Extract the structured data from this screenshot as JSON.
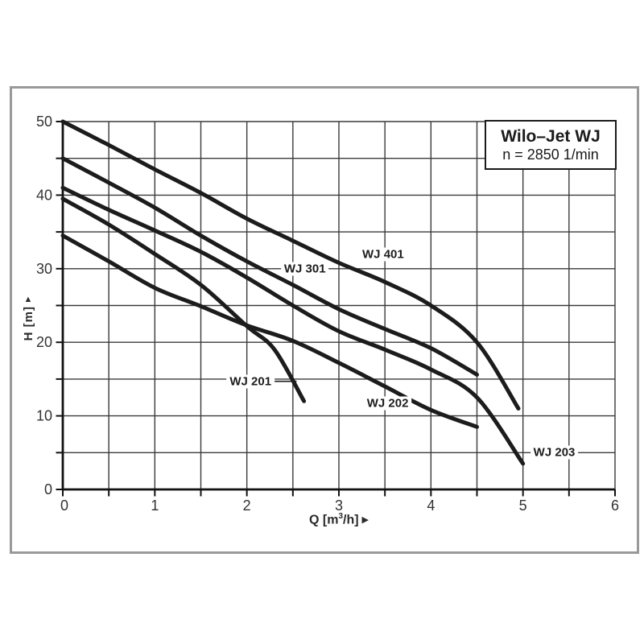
{
  "title_box": {
    "line1": "Wilo–Jet WJ",
    "line2": "n = 2850 1/min"
  },
  "axis_titles": {
    "x_pre": "Q [m",
    "x_sup": "3",
    "x_post": "/h]",
    "x_arrow": "▶",
    "y_label": "H [m]",
    "y_arrow": "▲"
  },
  "colors": {
    "curve": "#1c1c1c",
    "grid": "#3a3a3a",
    "axis": "#111111",
    "frame": "#999999",
    "text": "#333333"
  },
  "chart_data": {
    "type": "line",
    "title": "Wilo–Jet WJ",
    "subtitle": "n = 2850 1/min",
    "xlabel": "Q [m³/h]",
    "ylabel": "H [m]",
    "xlim": [
      0,
      6
    ],
    "ylim": [
      0,
      50
    ],
    "grid": {
      "x_step": 0.5,
      "y_step": 5,
      "on": true
    },
    "x_ticks": [
      0,
      1,
      2,
      3,
      4,
      5,
      6
    ],
    "y_ticks": [
      0,
      10,
      20,
      30,
      40,
      50
    ],
    "legend_position": "labels-on-curves",
    "series": [
      {
        "name": "WJ 401",
        "points": [
          [
            0,
            50
          ],
          [
            0.5,
            46.8
          ],
          [
            1,
            43.5
          ],
          [
            1.5,
            40.3
          ],
          [
            2,
            36.8
          ],
          [
            2.5,
            33.8
          ],
          [
            3,
            30.8
          ],
          [
            3.5,
            28.2
          ],
          [
            4,
            25
          ],
          [
            4.5,
            20
          ],
          [
            4.95,
            11
          ]
        ],
        "label_pos": [
          3.48,
          31.9
        ]
      },
      {
        "name": "WJ 301",
        "points": [
          [
            0,
            45
          ],
          [
            0.5,
            41.7
          ],
          [
            1,
            38.3
          ],
          [
            1.5,
            34.5
          ],
          [
            2,
            31
          ],
          [
            2.5,
            27.8
          ],
          [
            3,
            24.5
          ],
          [
            3.5,
            21.8
          ],
          [
            4,
            19.2
          ],
          [
            4.5,
            15.6
          ]
        ],
        "label_pos": [
          2.63,
          30.0
        ]
      },
      {
        "name": "WJ 203",
        "points": [
          [
            0,
            41
          ],
          [
            0.5,
            38
          ],
          [
            1,
            35.2
          ],
          [
            1.5,
            32.3
          ],
          [
            2,
            28.8
          ],
          [
            2.5,
            25
          ],
          [
            3,
            21.5
          ],
          [
            3.5,
            19
          ],
          [
            4,
            16.3
          ],
          [
            4.5,
            12.5
          ],
          [
            5,
            3.5
          ]
        ],
        "label_pos": [
          5.34,
          5.0
        ]
      },
      {
        "name": "WJ 201",
        "points": [
          [
            0,
            39.5
          ],
          [
            0.5,
            36
          ],
          [
            1,
            32
          ],
          [
            1.5,
            27.8
          ],
          [
            2,
            22.2
          ],
          [
            2.3,
            19
          ],
          [
            2.62,
            12
          ]
        ],
        "label_pos": [
          2.04,
          14.7
        ],
        "leader": [
          [
            2.3,
            14.7
          ],
          [
            2.54,
            14.7
          ]
        ]
      },
      {
        "name": "WJ 202",
        "points": [
          [
            0,
            34.5
          ],
          [
            0.5,
            31
          ],
          [
            1,
            27.4
          ],
          [
            1.5,
            24.9
          ],
          [
            2,
            22.3
          ],
          [
            2.5,
            20.2
          ],
          [
            3,
            17.2
          ],
          [
            3.5,
            14
          ],
          [
            4,
            10.8
          ],
          [
            4.5,
            8.5
          ]
        ],
        "label_pos": [
          3.53,
          11.7
        ]
      }
    ]
  }
}
